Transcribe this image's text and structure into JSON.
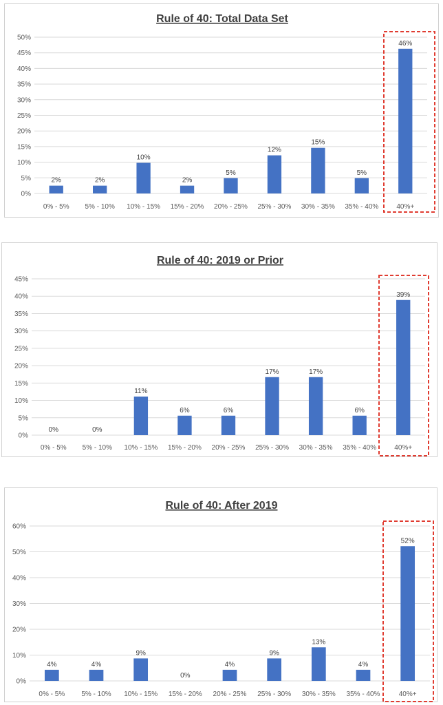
{
  "colors": {
    "bar": "#4472c4",
    "highlight": "#e03c31",
    "grid": "#d9d9d9"
  },
  "chart_data": [
    {
      "type": "bar",
      "title": "Rule of 40: Total Data Set",
      "categories": [
        "0% - 5%",
        "5% - 10%",
        "10% - 15%",
        "15% - 20%",
        "20% - 25%",
        "25% - 30%",
        "30% - 35%",
        "35% - 40%",
        "40%+"
      ],
      "values": [
        2.5,
        2.5,
        9.8,
        2.5,
        4.9,
        12.2,
        14.6,
        4.9,
        46.3
      ],
      "data_labels": [
        "2%",
        "2%",
        "10%",
        "2%",
        "5%",
        "12%",
        "15%",
        "5%",
        "46%"
      ],
      "yticks": [
        "0%",
        "5%",
        "10%",
        "15%",
        "20%",
        "25%",
        "30%",
        "35%",
        "40%",
        "45%",
        "50%"
      ],
      "ylim": [
        0,
        50
      ],
      "grid": true,
      "highlight_category": "40%+"
    },
    {
      "type": "bar",
      "title": "Rule of 40: 2019 or Prior",
      "categories": [
        "0% - 5%",
        "5% - 10%",
        "10% - 15%",
        "15% - 20%",
        "20% - 25%",
        "25% - 30%",
        "30% - 35%",
        "35% - 40%",
        "40%+"
      ],
      "values": [
        0,
        0,
        11.1,
        5.6,
        5.6,
        16.7,
        16.7,
        5.6,
        38.9
      ],
      "data_labels": [
        "0%",
        "0%",
        "11%",
        "6%",
        "6%",
        "17%",
        "17%",
        "6%",
        "39%"
      ],
      "yticks": [
        "0%",
        "5%",
        "10%",
        "15%",
        "20%",
        "25%",
        "30%",
        "35%",
        "40%",
        "45%"
      ],
      "ylim": [
        0,
        45
      ],
      "grid": true,
      "highlight_category": "40%+"
    },
    {
      "type": "bar",
      "title": "Rule of 40: After 2019",
      "categories": [
        "0% - 5%",
        "5% - 10%",
        "10% - 15%",
        "15% - 20%",
        "20% - 25%",
        "25% - 30%",
        "30% - 35%",
        "35% - 40%",
        "40%+"
      ],
      "values": [
        4.3,
        4.3,
        8.7,
        0,
        4.3,
        8.7,
        13.0,
        4.3,
        52.2
      ],
      "data_labels": [
        "4%",
        "4%",
        "9%",
        "0%",
        "4%",
        "9%",
        "13%",
        "4%",
        "52%"
      ],
      "yticks": [
        "0%",
        "10%",
        "20%",
        "30%",
        "40%",
        "50%",
        "60%"
      ],
      "ylim": [
        0,
        60
      ],
      "grid": true,
      "highlight_category": "40%+"
    }
  ]
}
